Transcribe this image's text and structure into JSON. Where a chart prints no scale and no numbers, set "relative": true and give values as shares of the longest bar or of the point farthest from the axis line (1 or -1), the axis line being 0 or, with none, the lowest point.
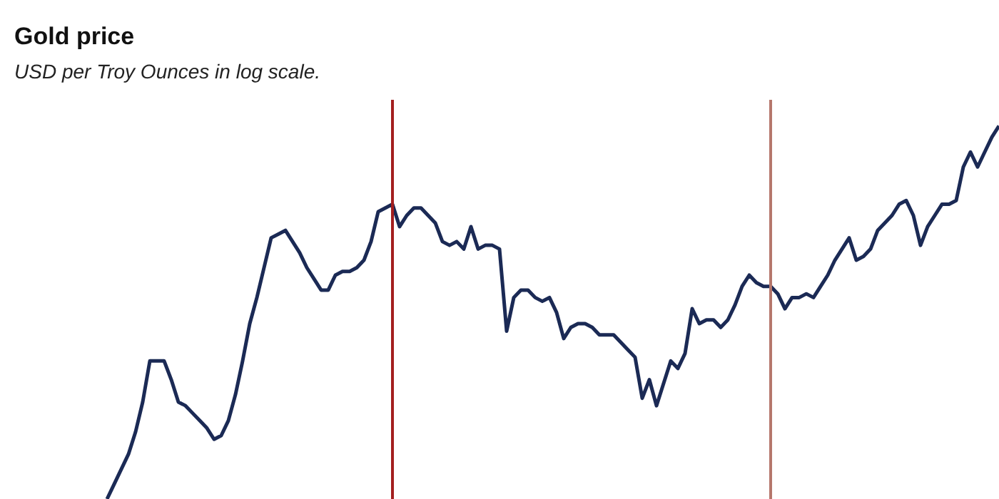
{
  "chart_data": {
    "type": "line",
    "title": "Gold price",
    "subtitle": "USD per Troy Ounces in log scale.",
    "relative": true,
    "legend": false,
    "grid": false,
    "marker": "none",
    "line_style": "solid",
    "categories": [
      null,
      null,
      null,
      null,
      null,
      null,
      null,
      null,
      null,
      null,
      null,
      null,
      null,
      null,
      null,
      null,
      null,
      null,
      null,
      null,
      null,
      null,
      null,
      null,
      null,
      null,
      null,
      null,
      null,
      null,
      null,
      null,
      null,
      null,
      null,
      null,
      null,
      null,
      null,
      null,
      null,
      null,
      null,
      null,
      null,
      null,
      null,
      null,
      null,
      null,
      null,
      null,
      null,
      null,
      null,
      null,
      null,
      null,
      null,
      null,
      null,
      null,
      null,
      null,
      null,
      null,
      null,
      null,
      null,
      null,
      null,
      null,
      null,
      null,
      null,
      null,
      null,
      null,
      null,
      null,
      null,
      null,
      null,
      null,
      null,
      null,
      null,
      null,
      null,
      null,
      null,
      null,
      null,
      null,
      null,
      null,
      null,
      null,
      null,
      null,
      null,
      null,
      null,
      null,
      null,
      null,
      null,
      null,
      null,
      null,
      null,
      null,
      null,
      null,
      null,
      null,
      null,
      null,
      null,
      null,
      null,
      null,
      null,
      null,
      null,
      null
    ],
    "series": [
      {
        "color": "#1b2a55",
        "values": [
          0,
          0.04,
          0.08,
          0.12,
          0.18,
          0.26,
          0.37,
          0.37,
          0.37,
          0.32,
          0.26,
          0.25,
          0.23,
          0.21,
          0.19,
          0.16,
          0.17,
          0.21,
          0.28,
          0.37,
          0.47,
          0.54,
          0.62,
          0.7,
          0.71,
          0.72,
          0.69,
          0.66,
          0.62,
          0.59,
          0.56,
          0.56,
          0.6,
          0.61,
          0.61,
          0.62,
          0.64,
          0.69,
          0.77,
          0.78,
          0.79,
          0.73,
          0.76,
          0.78,
          0.78,
          0.76,
          0.74,
          0.69,
          0.68,
          0.69,
          0.67,
          0.73,
          0.67,
          0.68,
          0.68,
          0.67,
          0.45,
          0.54,
          0.56,
          0.56,
          0.54,
          0.53,
          0.54,
          0.5,
          0.43,
          0.46,
          0.47,
          0.47,
          0.46,
          0.44,
          0.44,
          0.44,
          0.42,
          0.4,
          0.38,
          0.27,
          0.32,
          0.25,
          0.31,
          0.37,
          0.35,
          0.39,
          0.51,
          0.47,
          0.48,
          0.48,
          0.46,
          0.48,
          0.52,
          0.57,
          0.6,
          0.58,
          0.57,
          0.57,
          0.55,
          0.51,
          0.54,
          0.54,
          0.55,
          0.54,
          0.57,
          0.6,
          0.64,
          0.67,
          0.7,
          0.64,
          0.65,
          0.67,
          0.72,
          0.74,
          0.76,
          0.79,
          0.8,
          0.76,
          0.68,
          0.73,
          0.76,
          0.79,
          0.79,
          0.8,
          0.89,
          0.93,
          0.89,
          0.93,
          0.97,
          1
        ]
      }
    ]
  }
}
